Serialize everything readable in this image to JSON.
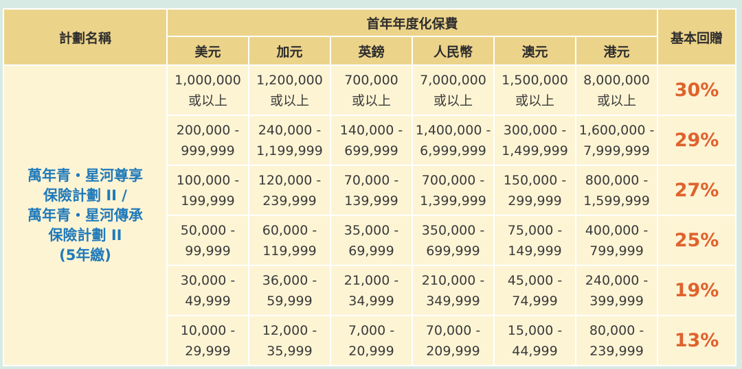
{
  "header": {
    "plan_name": "計劃名稱",
    "premium_group": "首年年度化保費",
    "bonus": "基本回贈",
    "currencies": [
      "美元",
      "加元",
      "英鎊",
      "人民幣",
      "澳元",
      "港元"
    ]
  },
  "plan": {
    "lines": [
      "萬年青・星河尊享",
      "保險計劃 II /",
      "萬年青・星河傳承",
      "保險計劃 II",
      "(5年繳)"
    ]
  },
  "rows": [
    {
      "cells": [
        [
          "1,000,000",
          "或以上"
        ],
        [
          "1,200,000",
          "或以上"
        ],
        [
          "700,000",
          "或以上"
        ],
        [
          "7,000,000",
          "或以上"
        ],
        [
          "1,500,000",
          "或以上"
        ],
        [
          "8,000,000",
          "或以上"
        ]
      ],
      "bonus": "30%"
    },
    {
      "cells": [
        [
          "200,000 -",
          "999,999"
        ],
        [
          "240,000 -",
          "1,199,999"
        ],
        [
          "140,000 -",
          "699,999"
        ],
        [
          "1,400,000 -",
          "6,999,999"
        ],
        [
          "300,000 -",
          "1,499,999"
        ],
        [
          "1,600,000 -",
          "7,999,999"
        ]
      ],
      "bonus": "29%"
    },
    {
      "cells": [
        [
          "100,000 -",
          "199,999"
        ],
        [
          "120,000 -",
          "239,999"
        ],
        [
          "70,000 -",
          "139,999"
        ],
        [
          "700,000 -",
          "1,399,999"
        ],
        [
          "150,000 -",
          "299,999"
        ],
        [
          "800,000 -",
          "1,599,999"
        ]
      ],
      "bonus": "27%"
    },
    {
      "cells": [
        [
          "50,000 -",
          "99,999"
        ],
        [
          "60,000 -",
          "119,999"
        ],
        [
          "35,000 -",
          "69,999"
        ],
        [
          "350,000 -",
          "699,999"
        ],
        [
          "75,000 -",
          "149,999"
        ],
        [
          "400,000 -",
          "799,999"
        ]
      ],
      "bonus": "25%"
    },
    {
      "cells": [
        [
          "30,000 -",
          "49,999"
        ],
        [
          "36,000 -",
          "59,999"
        ],
        [
          "21,000 -",
          "34,999"
        ],
        [
          "210,000 -",
          "349,999"
        ],
        [
          "45,000 -",
          "74,999"
        ],
        [
          "240,000 -",
          "399,999"
        ]
      ],
      "bonus": "19%"
    },
    {
      "cells": [
        [
          "10,000 -",
          "29,999"
        ],
        [
          "12,000 -",
          "35,999"
        ],
        [
          "7,000 -",
          "20,999"
        ],
        [
          "70,000 -",
          "209,999"
        ],
        [
          "15,000 -",
          "44,999"
        ],
        [
          "80,000 -",
          "239,999"
        ]
      ],
      "bonus": "13%"
    }
  ],
  "colors": {
    "background": "#d7ebe4",
    "header_fill": "#ecd38a",
    "body_fill": "#fdf4d4",
    "plan_text": "#1f79ba",
    "bonus_text": "#e0622d",
    "border": "#ffffff"
  }
}
